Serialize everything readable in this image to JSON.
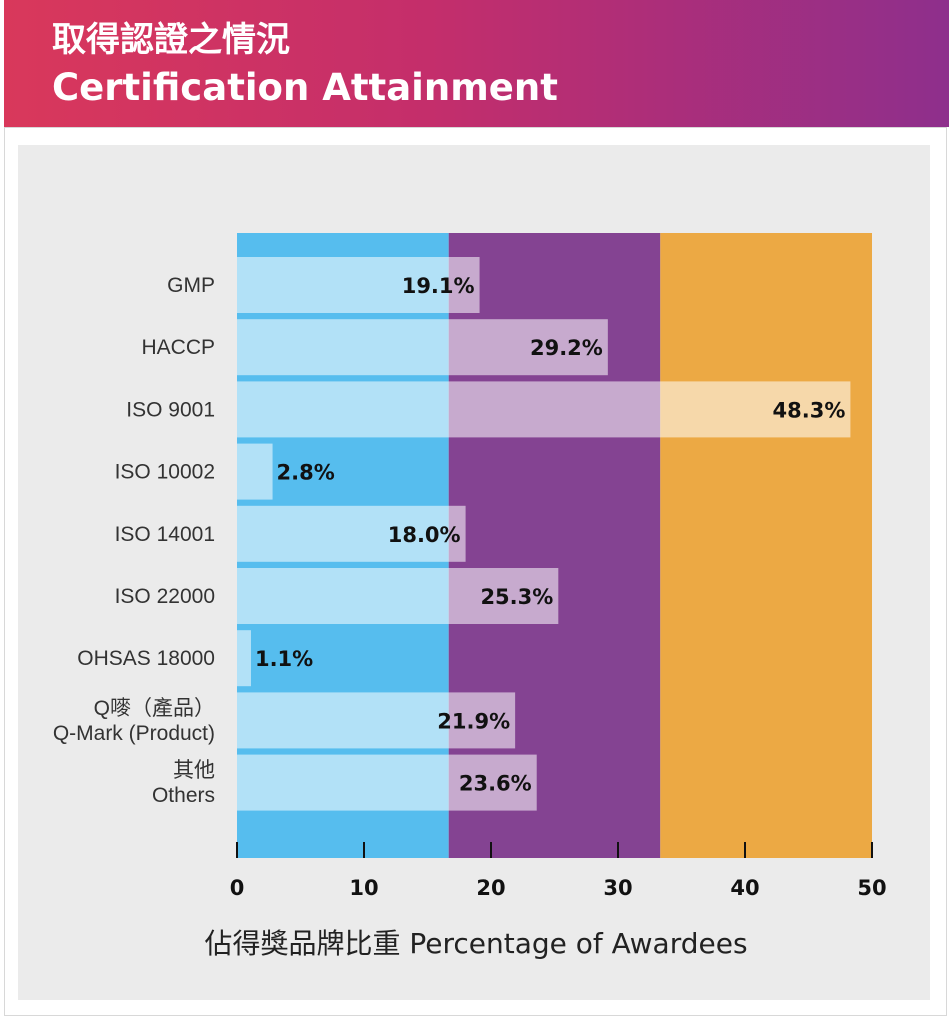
{
  "header": {
    "title_zh": "取得認證之情況",
    "title_en": "Certification Attainment"
  },
  "chart_data": {
    "type": "bar",
    "orientation": "horizontal",
    "categories": [
      [
        "GMP"
      ],
      [
        "HACCP"
      ],
      [
        "ISO 9001"
      ],
      [
        "ISO 10002"
      ],
      [
        "ISO 14001"
      ],
      [
        "ISO 22000"
      ],
      [
        "OHSAS 18000"
      ],
      [
        "Q嘜（產品）",
        "Q-Mark (Product)"
      ],
      [
        "其他",
        "Others"
      ]
    ],
    "values": [
      19.1,
      29.2,
      48.3,
      2.8,
      18.0,
      25.3,
      1.1,
      21.9,
      23.6
    ],
    "value_labels": [
      "19.1%",
      "29.2%",
      "48.3%",
      "2.8%",
      "18.0%",
      "25.3%",
      "1.1%",
      "21.9%",
      "23.6%"
    ],
    "xlabel": "佔得獎品牌比重 Percentage of Awardees",
    "xlim": [
      0,
      50
    ],
    "xticks": [
      0,
      10,
      20,
      30,
      40,
      50
    ],
    "background_bands": [
      {
        "from": 0,
        "to": 16.67,
        "color": "#56bdee"
      },
      {
        "from": 16.67,
        "to": 33.33,
        "color": "#844392"
      },
      {
        "from": 33.33,
        "to": 50,
        "color": "#eca944"
      }
    ],
    "bar_color": "#ffffff",
    "bar_opacity": 0.55
  }
}
